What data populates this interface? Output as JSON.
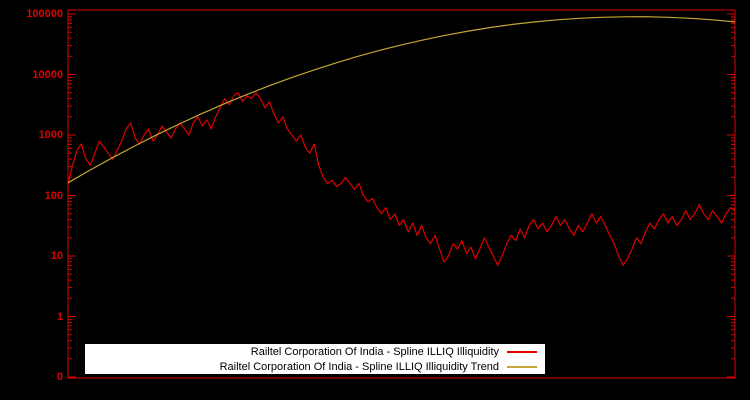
{
  "chart_data": {
    "type": "line",
    "title": "",
    "y_scale": "log",
    "y_tick_labels": [
      "100000",
      "10000",
      "1000",
      "100",
      "10",
      "1",
      "0"
    ],
    "y_log_range": [
      -1,
      5
    ],
    "x_tick_labels": [],
    "grid": false,
    "legend_position": "bottom-center",
    "background_color": "#000000",
    "axis_color": "#dd0000",
    "legend_background": "#ffffff",
    "legend_text_color": "#000000",
    "series": [
      {
        "name": "Railtel Corporation Of India - Spline ILLIQ Illiquidity",
        "color": "#e00000",
        "values": [
          150,
          316,
          560,
          710,
          400,
          316,
          500,
          790,
          630,
          500,
          400,
          560,
          790,
          1260,
          1580,
          890,
          710,
          1000,
          1260,
          790,
          1000,
          1410,
          1120,
          890,
          1260,
          1580,
          1260,
          1000,
          1580,
          2000,
          1410,
          1780,
          1260,
          2000,
          2820,
          4000,
          3160,
          4470,
          5000,
          3550,
          4470,
          4000,
          5000,
          4000,
          2820,
          3550,
          2240,
          1580,
          2000,
          1260,
          1000,
          790,
          1000,
          630,
          500,
          710,
          316,
          200,
          158,
          178,
          141,
          158,
          200,
          158,
          126,
          158,
          100,
          79,
          89,
          63,
          50,
          63,
          40,
          50,
          32,
          40,
          25,
          35,
          22,
          32,
          20,
          16,
          22,
          13,
          8,
          10,
          16,
          13,
          18,
          11,
          14,
          9,
          13,
          20,
          14,
          10,
          7,
          10,
          16,
          22,
          18,
          28,
          20,
          32,
          40,
          28,
          35,
          25,
          32,
          45,
          32,
          40,
          28,
          22,
          32,
          25,
          35,
          50,
          35,
          45,
          32,
          22,
          16,
          10,
          7,
          9,
          13,
          20,
          16,
          25,
          35,
          28,
          40,
          50,
          35,
          45,
          32,
          40,
          56,
          40,
          50,
          71,
          50,
          40,
          56,
          45,
          35,
          50,
          63,
          56
        ]
      },
      {
        "name": "Railtel Corporation Of India - Spline ILLIQ Illiquidity Trend",
        "color": "#c3a634",
        "values": [
          162,
          264,
          421,
          658,
          1010,
          1520,
          2240,
          3240,
          4600,
          6400,
          8730,
          11700,
          15300,
          19800,
          25000,
          30900,
          37500,
          44700,
          52200,
          59800,
          67300,
          74100,
          80200,
          84900,
          88300,
          90000,
          90100,
          88300,
          84900,
          80100,
          74100
        ]
      }
    ]
  },
  "legend": {
    "item1": "Railtel Corporation Of India - Spline ILLIQ Illiquidity",
    "item2": "Railtel Corporation Of India - Spline ILLIQ Illiquidity Trend"
  }
}
